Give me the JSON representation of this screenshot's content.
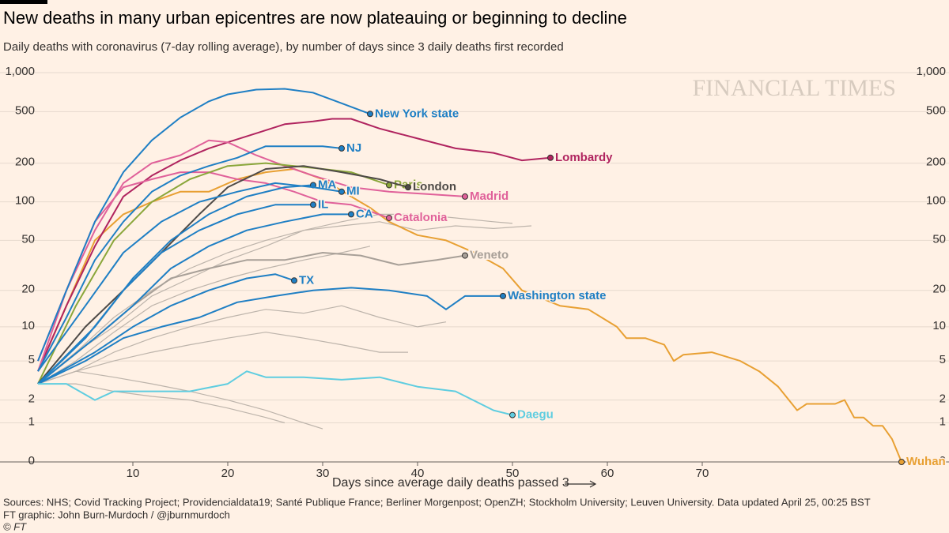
{
  "chart_data": {
    "type": "line",
    "title": "New deaths in many urban epicentres are now plateauing or beginning to decline",
    "subtitle": "Daily deaths with coronavirus (7-day rolling average), by number of days since 3 daily deaths first recorded",
    "x_label": "Days since average daily deaths passed 3",
    "watermark": "FINANCIAL TIMES",
    "source": "Sources: NHS; Covid Tracking Project; Providencialdata19; Santé Publique France; Berliner Morgenpost; OpenZH; Stockholm University; Leuven University. Data updated April 25, 00:25 BST",
    "credit": "FT graphic: John Burn-Murdoch / @jburnmurdoch",
    "copyright": "© FT",
    "yscale": "log1p",
    "grid": true,
    "xlim": [
      0,
      92
    ],
    "ylim": [
      0,
      1000
    ],
    "xticks": [
      10,
      20,
      30,
      40,
      50,
      60,
      70
    ],
    "yticks": [
      0,
      1,
      2,
      5,
      10,
      20,
      50,
      100,
      200,
      500,
      {
        "value": 1000,
        "label": "1,000"
      }
    ],
    "series": [
      {
        "color": "#bdb4ab",
        "x": [
          0,
          4,
          8,
          12,
          16,
          20,
          24,
          28,
          32,
          36,
          40,
          44,
          48,
          52
        ],
        "values": [
          3,
          6,
          12,
          20,
          30,
          40,
          50,
          60,
          65,
          70,
          60,
          65,
          62,
          65
        ]
      },
      {
        "color": "#bdb4ab",
        "x": [
          0,
          4,
          8,
          12,
          16,
          20,
          24,
          28,
          32,
          35
        ],
        "values": [
          3,
          5,
          9,
          15,
          20,
          25,
          30,
          35,
          40,
          45
        ]
      },
      {
        "color": "#bdb4ab",
        "x": [
          0,
          4,
          8,
          12,
          16,
          20,
          24,
          28,
          32,
          36,
          40,
          43
        ],
        "values": [
          3,
          4,
          6,
          8,
          10,
          12,
          14,
          13,
          15,
          12,
          10,
          11
        ]
      },
      {
        "color": "#bdb4ab",
        "x": [
          0,
          4,
          8,
          12,
          16,
          20,
          24,
          28,
          32,
          36,
          39
        ],
        "values": [
          3,
          4,
          5,
          6,
          7,
          8,
          9,
          8,
          7,
          6,
          6
        ]
      },
      {
        "color": "#bdb4ab",
        "x": [
          0,
          4,
          8,
          12,
          16,
          20,
          24,
          26
        ],
        "values": [
          3,
          3,
          2.5,
          2.2,
          2,
          1.6,
          1.2,
          1
        ]
      },
      {
        "color": "#bdb4ab",
        "x": [
          0,
          4,
          8,
          12,
          16,
          20,
          24,
          28,
          30
        ],
        "values": [
          3,
          4,
          3.5,
          3,
          2.5,
          2,
          1.5,
          1,
          0.8
        ]
      },
      {
        "color": "#bdb4ab",
        "x": [
          0,
          4,
          8,
          12,
          16,
          20,
          24,
          28,
          32,
          36,
          40,
          44,
          48,
          50
        ],
        "values": [
          3,
          6,
          10,
          18,
          25,
          35,
          45,
          60,
          70,
          80,
          80,
          75,
          70,
          68
        ]
      },
      {
        "name": "Wuhan",
        "color": "#e8a033",
        "x": [
          0,
          3,
          6,
          9,
          12,
          15,
          18,
          21,
          24,
          27,
          30,
          33,
          35,
          37,
          40,
          43,
          46,
          49,
          51,
          55,
          58,
          61,
          62,
          64,
          66,
          67,
          68,
          71,
          74,
          76,
          78,
          80,
          81,
          84,
          85,
          86,
          87,
          88,
          89,
          90,
          91
        ],
        "values": [
          4,
          15,
          50,
          80,
          100,
          120,
          120,
          150,
          170,
          180,
          150,
          110,
          90,
          70,
          55,
          50,
          40,
          30,
          20,
          15,
          14,
          10,
          8,
          8,
          7,
          5,
          5.7,
          6,
          5,
          4,
          2.8,
          1.5,
          1.8,
          1.8,
          2,
          1.2,
          1.2,
          0.9,
          0.9,
          0.5,
          0
        ]
      },
      {
        "name": "Lombardy",
        "color": "#b0245f",
        "x": [
          0,
          3,
          6,
          9,
          12,
          15,
          18,
          20,
          23,
          26,
          29,
          31,
          33,
          36,
          40,
          44,
          48,
          51,
          54
        ],
        "values": [
          4,
          15,
          45,
          110,
          160,
          210,
          260,
          290,
          340,
          400,
          420,
          440,
          440,
          370,
          310,
          260,
          240,
          210,
          220
        ]
      },
      {
        "name": "Madrid",
        "color": "#e0619a",
        "x": [
          0,
          3,
          6,
          9,
          12,
          15,
          18,
          20,
          23,
          26,
          29,
          33,
          37,
          41,
          45
        ],
        "values": [
          5,
          20,
          60,
          140,
          200,
          230,
          300,
          290,
          230,
          190,
          160,
          130,
          120,
          115,
          110
        ]
      },
      {
        "name": "Catalonia",
        "color": "#e0619a",
        "x": [
          0,
          3,
          6,
          9,
          12,
          15,
          18,
          21,
          24,
          27,
          30,
          33,
          37
        ],
        "values": [
          4,
          20,
          70,
          130,
          150,
          170,
          170,
          150,
          140,
          120,
          100,
          95,
          75
        ]
      },
      {
        "name": "Paris",
        "color": "#8aa63a",
        "x": [
          0,
          4,
          8,
          12,
          16,
          20,
          24,
          27,
          30,
          33,
          37
        ],
        "values": [
          3,
          15,
          50,
          100,
          150,
          190,
          200,
          190,
          180,
          170,
          135
        ]
      },
      {
        "name": "London",
        "color": "#4e4a47",
        "x": [
          0,
          5,
          9,
          13,
          17,
          20,
          24,
          28,
          32,
          36,
          39
        ],
        "values": [
          3,
          10,
          20,
          40,
          80,
          130,
          180,
          190,
          170,
          150,
          130
        ]
      },
      {
        "name": "Veneto",
        "color": "#a8a098",
        "x": [
          0,
          6,
          10,
          14,
          18,
          22,
          26,
          30,
          34,
          38,
          42,
          45
        ],
        "values": [
          3,
          8,
          15,
          25,
          30,
          35,
          35,
          40,
          38,
          32,
          35,
          38
        ]
      },
      {
        "name": "New York state",
        "color": "#1f7fc4",
        "x": [
          0,
          3,
          6,
          9,
          12,
          15,
          18,
          20,
          23,
          26,
          29,
          32,
          35
        ],
        "values": [
          5,
          20,
          70,
          170,
          300,
          450,
          600,
          680,
          740,
          750,
          700,
          580,
          480
        ]
      },
      {
        "name": "NJ",
        "color": "#1f7fc4",
        "x": [
          0,
          3,
          6,
          9,
          12,
          15,
          18,
          21,
          24,
          27,
          30,
          32
        ],
        "values": [
          4,
          12,
          35,
          70,
          120,
          160,
          190,
          220,
          270,
          270,
          270,
          260
        ]
      },
      {
        "name": "MA",
        "color": "#1f7fc4",
        "x": [
          0,
          6,
          10,
          14,
          18,
          22,
          26,
          29
        ],
        "values": [
          3,
          10,
          25,
          50,
          80,
          110,
          130,
          135
        ]
      },
      {
        "name": "MI",
        "color": "#1f7fc4",
        "x": [
          0,
          5,
          9,
          13,
          17,
          21,
          25,
          29,
          32
        ],
        "values": [
          4,
          15,
          40,
          70,
          100,
          120,
          140,
          130,
          120
        ]
      },
      {
        "name": "IL",
        "color": "#1f7fc4",
        "x": [
          0,
          5,
          9,
          13,
          17,
          21,
          25,
          29
        ],
        "values": [
          3,
          8,
          20,
          40,
          60,
          80,
          95,
          95
        ]
      },
      {
        "name": "CA",
        "color": "#1f7fc4",
        "x": [
          0,
          6,
          10,
          14,
          18,
          22,
          26,
          30,
          33
        ],
        "values": [
          3,
          8,
          15,
          30,
          45,
          60,
          70,
          80,
          80
        ]
      },
      {
        "name": "TX",
        "color": "#1f7fc4",
        "x": [
          0,
          6,
          10,
          14,
          18,
          22,
          25,
          27
        ],
        "values": [
          3,
          6,
          10,
          15,
          20,
          25,
          27,
          24
        ]
      },
      {
        "name": "Washington state",
        "color": "#1f7fc4",
        "x": [
          0,
          5,
          9,
          13,
          17,
          21,
          25,
          29,
          33,
          37,
          41,
          43,
          45,
          47,
          49
        ],
        "values": [
          3,
          5,
          8,
          10,
          12,
          16,
          18,
          20,
          21,
          20,
          18,
          14,
          18,
          18,
          18
        ]
      },
      {
        "name": "Daegu",
        "color": "#5fcde0",
        "x": [
          0,
          3,
          6,
          8,
          12,
          16,
          20,
          22,
          24,
          28,
          32,
          36,
          40,
          44,
          48,
          50
        ],
        "values": [
          3,
          3,
          2,
          2.5,
          2.5,
          2.5,
          3,
          4,
          3.5,
          3.5,
          3.3,
          3.5,
          2.8,
          2.5,
          1.5,
          1.3
        ]
      }
    ]
  }
}
